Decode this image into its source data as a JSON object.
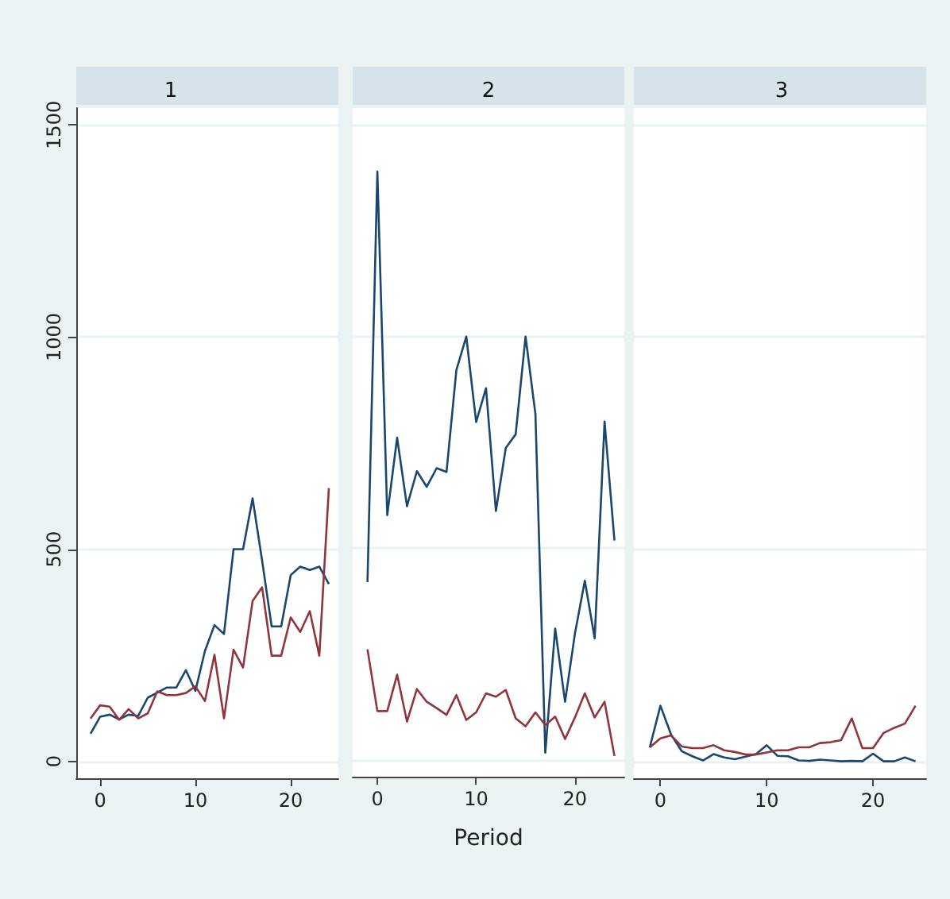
{
  "chart_data": [
    {
      "type": "line",
      "title": "1",
      "x": [
        -1,
        0,
        1,
        2,
        3,
        4,
        5,
        6,
        7,
        8,
        9,
        10,
        11,
        12,
        13,
        14,
        15,
        16,
        17,
        18,
        19,
        20,
        21,
        22,
        23,
        24
      ],
      "xlim": [
        -2.5,
        25
      ],
      "xticks": [
        0,
        10,
        20
      ],
      "ylim": [
        -40,
        1540
      ],
      "yticks": [
        0,
        500,
        1000,
        1500
      ],
      "grid": "y",
      "series": [
        {
          "color": "#1a476f",
          "values": [
            65,
            105,
            110,
            99,
            110,
            107,
            150,
            162,
            174,
            174,
            215,
            166,
            260,
            321,
            300,
            500,
            500,
            620,
            473,
            318,
            318,
            439,
            459,
            451,
            459,
            418
          ]
        },
        {
          "color": "#90353b",
          "values": [
            101,
            132,
            129,
            98,
            123,
            101,
            113,
            165,
            156,
            156,
            161,
            177,
            142,
            251,
            101,
            263,
            221,
            378,
            410,
            249,
            249,
            339,
            305,
            354,
            249,
            644
          ]
        }
      ]
    },
    {
      "type": "line",
      "title": "2",
      "xlabel": "Period",
      "x": [
        -1,
        0,
        1,
        2,
        3,
        4,
        5,
        6,
        7,
        8,
        9,
        10,
        11,
        12,
        13,
        14,
        15,
        16,
        17,
        18,
        19,
        20,
        21,
        22,
        23,
        24
      ],
      "xlim": [
        -2.5,
        25
      ],
      "xticks": [
        0,
        10,
        20
      ],
      "ylim": [
        -40,
        1540
      ],
      "yticks": [
        0,
        500,
        1000,
        1500
      ],
      "grid": "y",
      "tick_labels": "x",
      "series": [
        {
          "color": "#1a476f",
          "values": [
            420,
            1390,
            578,
            761,
            599,
            682,
            645,
            689,
            680,
            921,
            1000,
            798,
            878,
            588,
            737,
            769,
            1000,
            817,
            17,
            310,
            137,
            298,
            423,
            287,
            799,
            518
          ]
        },
        {
          "color": "#90353b",
          "values": [
            261,
            115,
            115,
            201,
            90,
            167,
            137,
            122,
            106,
            153,
            94,
            112,
            157,
            149,
            165,
            98,
            79,
            112,
            82,
            102,
            49,
            100,
            157,
            100,
            137,
            9
          ]
        }
      ]
    },
    {
      "type": "line",
      "title": "3",
      "x": [
        -1,
        0,
        1,
        2,
        3,
        4,
        5,
        6,
        7,
        8,
        9,
        10,
        11,
        12,
        13,
        14,
        15,
        16,
        17,
        18,
        19,
        20,
        21,
        22,
        23,
        24
      ],
      "xlim": [
        -2.5,
        25
      ],
      "xticks": [
        0,
        10,
        20
      ],
      "ylim": [
        -40,
        1540
      ],
      "yticks": [
        0,
        500,
        1000,
        1500
      ],
      "grid": "y",
      "tick_labels": "x",
      "series": [
        {
          "color": "#1a476f",
          "values": [
            33,
            131,
            63,
            24,
            12,
            2,
            17,
            9,
            5,
            11,
            17,
            38,
            13,
            12,
            2,
            1,
            4,
            2,
            0,
            1,
            0,
            18,
            0,
            0,
            9,
            0
          ]
        },
        {
          "color": "#90353b",
          "values": [
            33,
            54,
            61,
            35,
            31,
            31,
            38,
            26,
            22,
            16,
            16,
            21,
            26,
            26,
            33,
            33,
            43,
            45,
            50,
            101,
            31,
            31,
            67,
            79,
            89,
            131
          ]
        }
      ]
    }
  ]
}
